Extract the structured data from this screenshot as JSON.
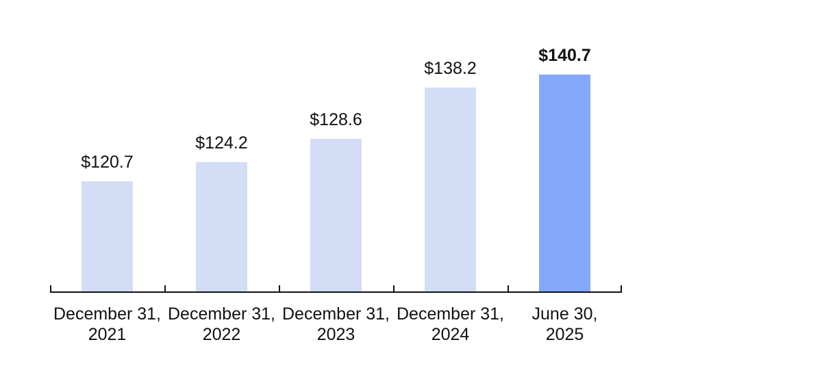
{
  "chart_data": {
    "type": "bar",
    "categories": [
      {
        "line1": "December 31,",
        "line2": "2021"
      },
      {
        "line1": "December 31,",
        "line2": "2022"
      },
      {
        "line1": "December 31,",
        "line2": "2023"
      },
      {
        "line1": "December 31,",
        "line2": "2024"
      },
      {
        "line1": "June 30,",
        "line2": "2025"
      }
    ],
    "values": [
      120.7,
      124.2,
      128.6,
      138.2,
      140.7
    ],
    "value_labels": [
      "$120.7",
      "$124.2",
      "$128.6",
      "$138.2",
      "$140.7"
    ],
    "highlight_index": 4,
    "title": "",
    "xlabel": "",
    "ylabel": "",
    "ylim": [
      100,
      142
    ],
    "grid": false,
    "legend": false,
    "colors": {
      "bar": "#d3ddf6",
      "bar_highlight": "#83a8fa",
      "axis": "#111111",
      "text": "#111111"
    }
  }
}
